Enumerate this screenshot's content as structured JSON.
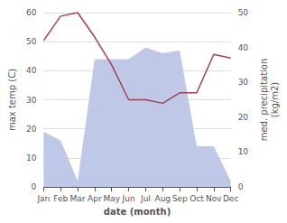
{
  "chart_data": {
    "type": "line",
    "xlabel": "date (month)",
    "ylabel": "max temp (C)",
    "y2label": "med. precipitation\n(kg/m2)",
    "categories": [
      "Jan",
      "Feb",
      "Mar",
      "Apr",
      "May",
      "Jun",
      "Jul",
      "Aug",
      "Sep",
      "Oct",
      "Nov",
      "Dec"
    ],
    "series": [
      {
        "type": "area",
        "color": "#c0c8e8",
        "values": [
          19,
          16,
          2,
          44,
          44,
          44,
          48,
          46,
          47,
          14,
          14,
          2
        ]
      },
      {
        "type": "line",
        "color": "#a04050",
        "axis": "y2",
        "values": [
          42,
          49,
          50,
          43,
          35,
          25,
          25,
          24,
          27,
          27,
          38,
          37
        ]
      }
    ],
    "ylim": [
      0,
      60
    ],
    "yticks": [
      0,
      10,
      20,
      30,
      40,
      50,
      60
    ],
    "y2lim": [
      0,
      50
    ],
    "y2ticks": [
      0,
      10,
      20,
      30,
      40,
      50
    ],
    "grid": true
  }
}
